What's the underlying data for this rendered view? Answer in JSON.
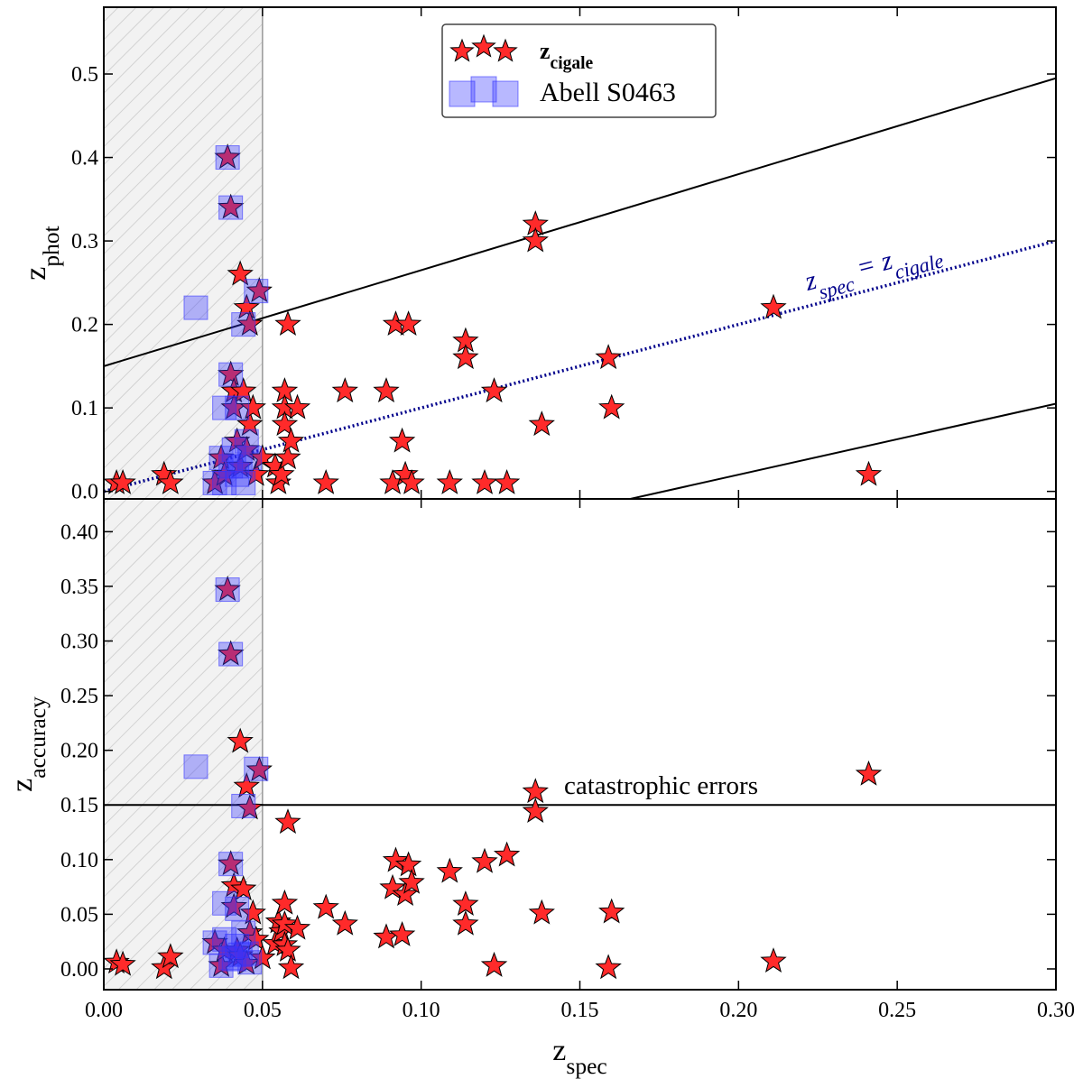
{
  "chart_data": [
    {
      "type": "scatter",
      "ylabel": "z_phot",
      "annotation": "z_spec = z_cigale",
      "xlim": [
        0,
        0.3
      ],
      "ylim": [
        -0.009,
        0.58
      ],
      "xticks": [
        0,
        0.05,
        0.1,
        0.15,
        0.2,
        0.25,
        0.3
      ],
      "yticks": [
        {
          "value": 0,
          "label": "0.0"
        },
        0.1,
        0.2,
        0.3,
        0.4,
        0.5
      ],
      "outlier_threshold": 0.15,
      "shade_xlim": [
        0,
        0.05
      ],
      "legend": "upper center",
      "series": [
        {
          "name": "z_cigale",
          "marker": "star",
          "color": "#ff2a2a",
          "x": [
            0.004,
            0.006,
            0.019,
            0.021,
            0.035,
            0.037,
            0.038,
            0.039,
            0.04,
            0.04,
            0.041,
            0.041,
            0.042,
            0.043,
            0.043,
            0.044,
            0.045,
            0.045,
            0.046,
            0.046,
            0.047,
            0.048,
            0.049,
            0.05,
            0.054,
            0.055,
            0.056,
            0.057,
            0.057,
            0.057,
            0.058,
            0.058,
            0.059,
            0.061,
            0.07,
            0.076,
            0.089,
            0.091,
            0.092,
            0.094,
            0.095,
            0.096,
            0.097,
            0.109,
            0.114,
            0.114,
            0.12,
            0.123,
            0.127,
            0.136,
            0.136,
            0.138,
            0.159,
            0.16,
            0.211,
            0.241
          ],
          "values": [
            0.01,
            0.01,
            0.02,
            0.01,
            0.01,
            0.04,
            0.02,
            0.4,
            0.34,
            0.14,
            0.12,
            0.1,
            0.06,
            0.03,
            0.26,
            0.12,
            0.22,
            0.05,
            0.2,
            0.08,
            0.1,
            0.02,
            0.24,
            0.04,
            0.03,
            0.01,
            0.02,
            0.12,
            0.1,
            0.08,
            0.04,
            0.2,
            0.06,
            0.1,
            0.01,
            0.12,
            0.12,
            0.01,
            0.2,
            0.06,
            0.02,
            0.2,
            0.01,
            0.01,
            0.18,
            0.16,
            0.01,
            0.12,
            0.01,
            0.32,
            0.3,
            0.08,
            0.16,
            0.1,
            0.22,
            0.02
          ]
        },
        {
          "name": "Abell S0463",
          "marker": "square",
          "color": "#3333ff",
          "x": [
            0.029,
            0.039,
            0.04,
            0.04,
            0.038,
            0.042,
            0.044,
            0.048,
            0.045,
            0.037,
            0.04,
            0.035,
            0.038,
            0.042,
            0.044,
            0.046,
            0.041,
            0.043
          ],
          "values": [
            0.22,
            0.4,
            0.34,
            0.14,
            0.1,
            0.1,
            0.2,
            0.24,
            0.06,
            0.04,
            0.03,
            0.01,
            0.01,
            0.02,
            0.01,
            0.04,
            0.05,
            0.03
          ]
        }
      ]
    },
    {
      "type": "scatter",
      "xlabel": "z_spec",
      "ylabel": "z_accuracy",
      "annotation": "catastrophic errors",
      "xlim": [
        0,
        0.3
      ],
      "ylim": [
        -0.019,
        0.43
      ],
      "xticks": [
        {
          "value": 0,
          "label": "0.00"
        },
        0.05,
        {
          "value": 0.1,
          "label": "0.10"
        },
        0.15,
        {
          "value": 0.2,
          "label": "0.20"
        },
        0.25,
        {
          "value": 0.3,
          "label": "0.30"
        }
      ],
      "yticks": [
        {
          "value": 0,
          "label": "0.00"
        },
        0.05,
        {
          "value": 0.1,
          "label": "0.10"
        },
        0.15,
        {
          "value": 0.2,
          "label": "0.20"
        },
        0.25,
        {
          "value": 0.3,
          "label": "0.30"
        },
        0.35,
        {
          "value": 0.4,
          "label": "0.40"
        }
      ],
      "outlier_threshold": 0.15,
      "shade_xlim": [
        0,
        0.05
      ],
      "series": [
        {
          "name": "z_cigale",
          "marker": "star",
          "color": "#ff2a2a",
          "x": [
            0.004,
            0.006,
            0.019,
            0.021,
            0.035,
            0.037,
            0.038,
            0.039,
            0.04,
            0.04,
            0.041,
            0.041,
            0.042,
            0.043,
            0.043,
            0.044,
            0.045,
            0.045,
            0.046,
            0.046,
            0.047,
            0.048,
            0.049,
            0.05,
            0.054,
            0.055,
            0.056,
            0.057,
            0.057,
            0.057,
            0.058,
            0.058,
            0.059,
            0.061,
            0.07,
            0.076,
            0.089,
            0.091,
            0.092,
            0.094,
            0.095,
            0.096,
            0.097,
            0.109,
            0.114,
            0.114,
            0.12,
            0.123,
            0.127,
            0.136,
            0.136,
            0.138,
            0.159,
            0.16,
            0.211,
            0.241
          ],
          "values": [
            0.006,
            0.004,
            0.001,
            0.011,
            0.024,
            0.003,
            0.017,
            0.347,
            0.288,
            0.096,
            0.076,
            0.057,
            0.017,
            0.012,
            0.208,
            0.073,
            0.167,
            0.005,
            0.147,
            0.033,
            0.051,
            0.027,
            0.182,
            0.01,
            0.023,
            0.043,
            0.034,
            0.06,
            0.041,
            0.022,
            0.017,
            0.134,
            0.001,
            0.037,
            0.056,
            0.041,
            0.029,
            0.074,
            0.099,
            0.031,
            0.068,
            0.095,
            0.079,
            0.089,
            0.059,
            0.041,
            0.098,
            0.003,
            0.104,
            0.162,
            0.144,
            0.051,
            0.001,
            0.052,
            0.007,
            0.178
          ]
        },
        {
          "name": "Abell S0463",
          "marker": "square",
          "color": "#3333ff",
          "x": [
            0.029,
            0.039,
            0.04,
            0.04,
            0.038,
            0.042,
            0.044,
            0.048,
            0.045,
            0.037,
            0.04,
            0.035,
            0.038,
            0.042,
            0.044,
            0.046,
            0.041,
            0.043
          ],
          "values": [
            0.185,
            0.347,
            0.288,
            0.096,
            0.06,
            0.055,
            0.149,
            0.183,
            0.014,
            0.003,
            0.01,
            0.024,
            0.027,
            0.021,
            0.033,
            0.006,
            0.009,
            0.013
          ]
        }
      ]
    }
  ]
}
